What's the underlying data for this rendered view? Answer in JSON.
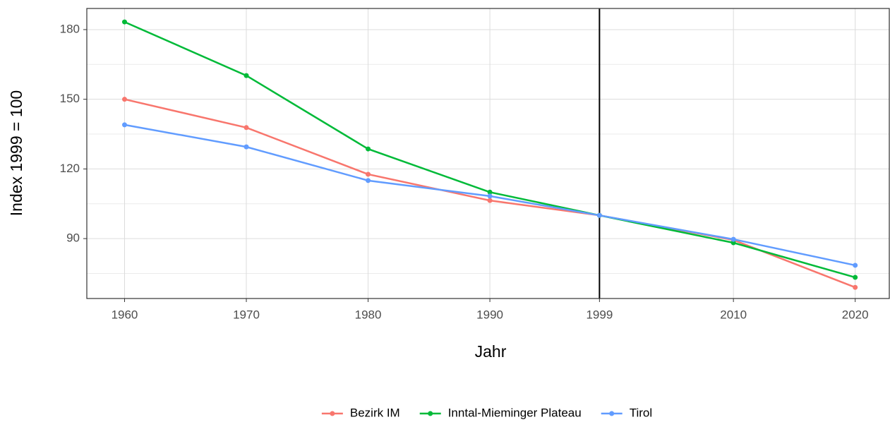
{
  "chart_data": {
    "type": "line",
    "x_label": "Jahr",
    "y_label": "Index 1999 = 100",
    "x": [
      1960,
      1970,
      1980,
      1990,
      1999,
      2010,
      2020
    ],
    "series": [
      {
        "name": "Bezirk IM",
        "color": "#F8766D",
        "values": [
          150,
          137.8,
          117.7,
          106.4,
          100,
          89.4,
          69
        ]
      },
      {
        "name": "Inntal-Mieminger Plateau",
        "color": "#00BA38",
        "values": [
          183.3,
          160.2,
          128.6,
          110,
          100,
          88.2,
          73.3
        ]
      },
      {
        "name": "Tirol",
        "color": "#619CFF",
        "values": [
          139,
          129.5,
          115,
          108.3,
          100,
          89.7,
          78.5
        ]
      }
    ],
    "xlim": [
      1956.9,
      2022.8
    ],
    "ylim": [
      64.2,
      189.1
    ],
    "xticks": [
      1960,
      1970,
      1980,
      1990,
      1999,
      2010,
      2020
    ],
    "yticks": [
      90,
      120,
      150,
      180
    ],
    "yminor": [
      75,
      105,
      135,
      165
    ],
    "vline": 1999,
    "vline_color": "#000000",
    "grid": true,
    "legend": "bottom"
  }
}
